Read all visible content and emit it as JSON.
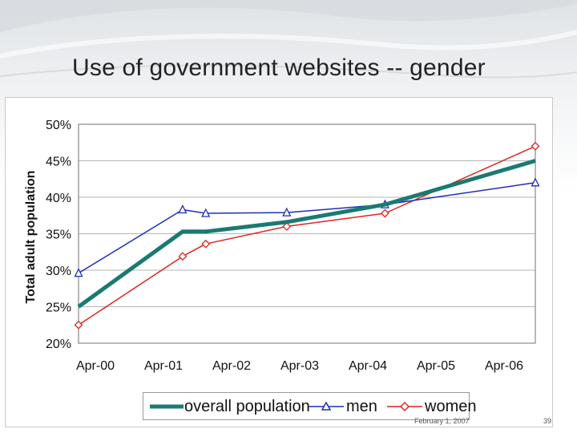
{
  "slide": {
    "title": "Use of government websites -- gender",
    "footer_date": "February 1, 2007",
    "page_number": "39"
  },
  "colors": {
    "overall": "#1a7a72",
    "men": "#1f2fb5",
    "women": "#e0241f",
    "grid": "#b5b5b5",
    "plot_border": "#888888"
  },
  "chart_data": {
    "type": "line",
    "title": "",
    "xlabel": "",
    "ylabel": "Total adult population",
    "x_tick_labels": [
      "Apr-00",
      "Apr-01",
      "Apr-02",
      "Apr-03",
      "Apr-04",
      "Apr-05",
      "Apr-06"
    ],
    "x_range": [
      "2000-04",
      "2006-11"
    ],
    "y_tick_labels": [
      "20%",
      "25%",
      "30%",
      "35%",
      "40%",
      "45%",
      "50%"
    ],
    "ylim": [
      20,
      50
    ],
    "grid": true,
    "legend_position": "bottom",
    "series": [
      {
        "name": "overall population",
        "marker": "none",
        "points": [
          {
            "x": "2000-04",
            "y": 25.0
          },
          {
            "x": "2001-10",
            "y": 35.3
          },
          {
            "x": "2002-02",
            "y": 35.3
          },
          {
            "x": "2003-04",
            "y": 36.6
          },
          {
            "x": "2004-09",
            "y": 39.0
          },
          {
            "x": "2006-11",
            "y": 45.0
          }
        ]
      },
      {
        "name": "men",
        "marker": "triangle",
        "points": [
          {
            "x": "2000-04",
            "y": 29.6
          },
          {
            "x": "2001-10",
            "y": 38.3
          },
          {
            "x": "2002-02",
            "y": 37.8
          },
          {
            "x": "2003-04",
            "y": 37.9
          },
          {
            "x": "2004-09",
            "y": 39.0
          },
          {
            "x": "2006-11",
            "y": 42.0
          }
        ]
      },
      {
        "name": "women",
        "marker": "diamond",
        "points": [
          {
            "x": "2000-04",
            "y": 22.5
          },
          {
            "x": "2001-10",
            "y": 31.9
          },
          {
            "x": "2002-02",
            "y": 33.6
          },
          {
            "x": "2003-04",
            "y": 36.0
          },
          {
            "x": "2004-09",
            "y": 37.8
          },
          {
            "x": "2006-11",
            "y": 47.0
          }
        ]
      }
    ]
  }
}
